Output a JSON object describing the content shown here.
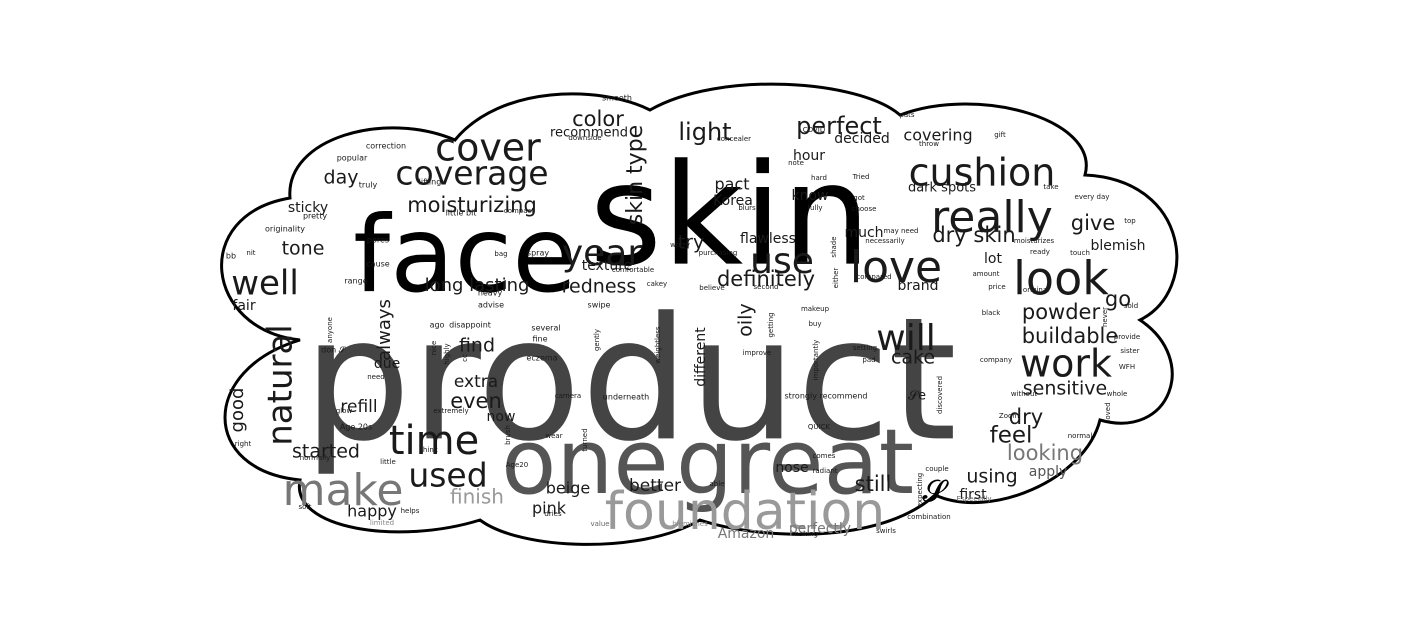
{
  "cloud_shape": "cloud",
  "colors": {
    "background": "#ffffff",
    "outline": "#000000",
    "shades": [
      "#000000",
      "#1a1a1a",
      "#333333",
      "#444444",
      "#555555",
      "#666666",
      "#777777",
      "#888888",
      "#999999",
      "#aaaaaa"
    ]
  },
  "words": [
    {
      "text": "skin",
      "weight": 1.0,
      "shade": 0
    },
    {
      "text": "product",
      "weight": 1.0,
      "shade": 3
    },
    {
      "text": "face",
      "weight": 0.9,
      "shade": 0
    },
    {
      "text": "one",
      "weight": 0.75,
      "shade": 4
    },
    {
      "text": "great",
      "weight": 0.75,
      "shade": 4
    },
    {
      "text": "foundation",
      "weight": 0.55,
      "shade": 8
    },
    {
      "text": "cover",
      "weight": 0.4,
      "shade": 1
    },
    {
      "text": "coverage",
      "weight": 0.35,
      "shade": 1
    },
    {
      "text": "cushion",
      "weight": 0.4,
      "shade": 1
    },
    {
      "text": "really",
      "weight": 0.45,
      "shade": 1
    },
    {
      "text": "look",
      "weight": 0.45,
      "shade": 1
    },
    {
      "text": "love",
      "weight": 0.45,
      "shade": 1
    },
    {
      "text": "year",
      "weight": 0.4,
      "shade": 1
    },
    {
      "text": "use",
      "weight": 0.4,
      "shade": 1
    },
    {
      "text": "will",
      "weight": 0.4,
      "shade": 1
    },
    {
      "text": "work",
      "weight": 0.42,
      "shade": 1
    },
    {
      "text": "time",
      "weight": 0.42,
      "shade": 1
    },
    {
      "text": "make",
      "weight": 0.45,
      "shade": 6
    },
    {
      "text": "used",
      "weight": 0.38,
      "shade": 1
    },
    {
      "text": "natural",
      "weight": 0.35,
      "shade": 1
    },
    {
      "text": "well",
      "weight": 0.38,
      "shade": 1
    },
    {
      "text": "moisturizing",
      "weight": 0.2,
      "shade": 1
    },
    {
      "text": "perfect",
      "weight": 0.22,
      "shade": 1
    },
    {
      "text": "light",
      "weight": 0.2,
      "shade": 1
    },
    {
      "text": "color",
      "weight": 0.2,
      "shade": 1
    },
    {
      "text": "skin type",
      "weight": 0.2,
      "shade": 1
    },
    {
      "text": "dry skin",
      "weight": 0.2,
      "shade": 1
    },
    {
      "text": "definitely",
      "weight": 0.2,
      "shade": 1
    },
    {
      "text": "long lasting",
      "weight": 0.18,
      "shade": 1
    },
    {
      "text": "redness",
      "weight": 0.18,
      "shade": 1
    },
    {
      "text": "powder",
      "weight": 0.2,
      "shade": 1
    },
    {
      "text": "buildable",
      "weight": 0.2,
      "shade": 1
    },
    {
      "text": "sensitive",
      "weight": 0.18,
      "shade": 1
    },
    {
      "text": "looking",
      "weight": 0.2,
      "shade": 6
    },
    {
      "text": "finish",
      "weight": 0.2,
      "shade": 8
    },
    {
      "text": "even",
      "weight": 0.2,
      "shade": 1
    },
    {
      "text": "find",
      "weight": 0.18,
      "shade": 1
    },
    {
      "text": "cake",
      "weight": 0.18,
      "shade": 1
    },
    {
      "text": "feel",
      "weight": 0.2,
      "shade": 1
    },
    {
      "text": "dry",
      "weight": 0.2,
      "shade": 1
    },
    {
      "text": "using",
      "weight": 0.18,
      "shade": 1
    },
    {
      "text": "still",
      "weight": 0.2,
      "shade": 1
    },
    {
      "text": "tone",
      "weight": 0.18,
      "shade": 1
    },
    {
      "text": "day",
      "weight": 0.18,
      "shade": 1
    },
    {
      "text": "go",
      "weight": 0.2,
      "shade": 1
    },
    {
      "text": "give",
      "weight": 0.18,
      "shade": 1
    },
    {
      "text": "try",
      "weight": 0.18,
      "shade": 1
    },
    {
      "text": "good",
      "weight": 0.16,
      "shade": 1
    },
    {
      "text": "always",
      "weight": 0.16,
      "shade": 1
    },
    {
      "text": "oily",
      "weight": 0.16,
      "shade": 1
    },
    {
      "text": "started",
      "weight": 0.16,
      "shade": 1
    },
    {
      "text": "extra",
      "weight": 0.15,
      "shade": 1
    },
    {
      "text": "refill",
      "weight": 0.15,
      "shade": 1
    },
    {
      "text": "beige",
      "weight": 0.15,
      "shade": 1
    },
    {
      "text": "pink",
      "weight": 0.15,
      "shade": 1
    },
    {
      "text": "better",
      "weight": 0.15,
      "shade": 1
    },
    {
      "text": "happy",
      "weight": 0.15,
      "shade": 1
    },
    {
      "text": "texture",
      "weight": 0.13,
      "shade": 1
    },
    {
      "text": "pact",
      "weight": 0.14,
      "shade": 1
    },
    {
      "text": "Korea",
      "weight": 0.13,
      "shade": 1
    },
    {
      "text": "flawless",
      "weight": 0.13,
      "shade": 1
    },
    {
      "text": "hour",
      "weight": 0.13,
      "shade": 1
    },
    {
      "text": "know",
      "weight": 0.13,
      "shade": 1
    },
    {
      "text": "decided",
      "weight": 0.13,
      "shade": 1
    },
    {
      "text": "covering",
      "weight": 0.13,
      "shade": 1
    },
    {
      "text": "recommend",
      "weight": 0.12,
      "shade": 1
    },
    {
      "text": "dark spots",
      "weight": 0.12,
      "shade": 1
    },
    {
      "text": "sticky",
      "weight": 0.12,
      "shade": 1
    },
    {
      "text": "much",
      "weight": 0.12,
      "shade": 1
    },
    {
      "text": "brand",
      "weight": 0.12,
      "shade": 1
    },
    {
      "text": "lot",
      "weight": 0.12,
      "shade": 1
    },
    {
      "text": "blemish",
      "weight": 0.12,
      "shade": 1
    },
    {
      "text": "fair",
      "weight": 0.12,
      "shade": 1
    },
    {
      "text": "due",
      "weight": 0.12,
      "shade": 1
    },
    {
      "text": "now",
      "weight": 0.12,
      "shade": 1
    },
    {
      "text": "different",
      "weight": 0.12,
      "shade": 1
    },
    {
      "text": "nose",
      "weight": 0.12,
      "shade": 1
    },
    {
      "text": "first",
      "weight": 0.12,
      "shade": 1
    },
    {
      "text": "apply",
      "weight": 0.12,
      "shade": 4
    },
    {
      "text": "Amazon",
      "weight": 0.12,
      "shade": 6
    },
    {
      "text": "perfectly",
      "weight": 0.12,
      "shade": 6
    },
    {
      "text": "smooth",
      "weight": 0.06,
      "shade": 1
    },
    {
      "text": "correction",
      "weight": 0.06,
      "shade": 1
    },
    {
      "text": "popular",
      "weight": 0.06,
      "shade": 1
    },
    {
      "text": "truly",
      "weight": 0.06,
      "shade": 1
    },
    {
      "text": "lifting",
      "weight": 0.06,
      "shade": 1
    },
    {
      "text": "little bit",
      "weight": 0.06,
      "shade": 1
    },
    {
      "text": "compact",
      "weight": 0.05,
      "shade": 1
    },
    {
      "text": "pretty",
      "weight": 0.06,
      "shade": 1
    },
    {
      "text": "originality",
      "weight": 0.06,
      "shade": 1
    },
    {
      "text": "pores",
      "weight": 0.06,
      "shade": 1
    },
    {
      "text": "spray",
      "weight": 0.06,
      "shade": 1
    },
    {
      "text": "bag",
      "weight": 0.05,
      "shade": 1
    },
    {
      "text": "bb",
      "weight": 0.06,
      "shade": 1
    },
    {
      "text": "nit",
      "weight": 0.05,
      "shade": 1
    },
    {
      "text": "cause",
      "weight": 0.06,
      "shade": 1
    },
    {
      "text": "range",
      "weight": 0.06,
      "shade": 1
    },
    {
      "text": "heavy",
      "weight": 0.06,
      "shade": 1
    },
    {
      "text": "advise",
      "weight": 0.06,
      "shade": 1
    },
    {
      "text": "comfortable",
      "weight": 0.05,
      "shade": 1
    },
    {
      "text": "cakey",
      "weight": 0.05,
      "shade": 1
    },
    {
      "text": "swipe",
      "weight": 0.06,
      "shade": 1
    },
    {
      "text": "ago",
      "weight": 0.06,
      "shade": 1
    },
    {
      "text": "disappoint",
      "weight": 0.06,
      "shade": 1
    },
    {
      "text": "several",
      "weight": 0.06,
      "shade": 1
    },
    {
      "text": "fine",
      "weight": 0.06,
      "shade": 1
    },
    {
      "text": "eczema",
      "weight": 0.06,
      "shade": 1
    },
    {
      "text": "camera",
      "weight": 0.05,
      "shade": 1
    },
    {
      "text": "underneath",
      "weight": 0.05,
      "shade": 1
    },
    {
      "text": "gently",
      "weight": 0.05,
      "shade": 1
    },
    {
      "text": "weightless",
      "weight": 0.05,
      "shade": 1
    },
    {
      "text": "worry",
      "weight": 0.05,
      "shade": 1
    },
    {
      "text": "purchasing",
      "weight": 0.05,
      "shade": 1
    },
    {
      "text": "believe",
      "weight": 0.05,
      "shade": 1
    },
    {
      "text": "second",
      "weight": 0.05,
      "shade": 1
    },
    {
      "text": "blurs",
      "weight": 0.05,
      "shade": 1
    },
    {
      "text": "concealer",
      "weight": 0.05,
      "shade": 1
    },
    {
      "text": "downside",
      "weight": 0.05,
      "shade": 1
    },
    {
      "text": "COVID",
      "weight": 0.05,
      "shade": 1
    },
    {
      "text": "note",
      "weight": 0.05,
      "shade": 1
    },
    {
      "text": "hard",
      "weight": 0.05,
      "shade": 1
    },
    {
      "text": "fully",
      "weight": 0.05,
      "shade": 1
    },
    {
      "text": "Tried",
      "weight": 0.05,
      "shade": 1
    },
    {
      "text": "got",
      "weight": 0.05,
      "shade": 1
    },
    {
      "text": "choose",
      "weight": 0.05,
      "shade": 1
    },
    {
      "text": "pats",
      "weight": 0.05,
      "shade": 1
    },
    {
      "text": "throw",
      "weight": 0.05,
      "shade": 1
    },
    {
      "text": "gift",
      "weight": 0.05,
      "shade": 1
    },
    {
      "text": "take",
      "weight": 0.05,
      "shade": 1
    },
    {
      "text": "every day",
      "weight": 0.05,
      "shade": 1
    },
    {
      "text": "top",
      "weight": 0.05,
      "shade": 1
    },
    {
      "text": "may need",
      "weight": 0.05,
      "shade": 1
    },
    {
      "text": "necessarily",
      "weight": 0.05,
      "shade": 1
    },
    {
      "text": "compared",
      "weight": 0.05,
      "shade": 1
    },
    {
      "text": "moisturizes",
      "weight": 0.05,
      "shade": 1
    },
    {
      "text": "ready",
      "weight": 0.05,
      "shade": 1
    },
    {
      "text": "touch",
      "weight": 0.05,
      "shade": 1
    },
    {
      "text": "amount",
      "weight": 0.05,
      "shade": 1
    },
    {
      "text": "price",
      "weight": 0.05,
      "shade": 1
    },
    {
      "text": "original",
      "weight": 0.05,
      "shade": 1
    },
    {
      "text": "sold",
      "weight": 0.05,
      "shade": 1
    },
    {
      "text": "black",
      "weight": 0.05,
      "shade": 1
    },
    {
      "text": "provide",
      "weight": 0.05,
      "shade": 1
    },
    {
      "text": "sister",
      "weight": 0.05,
      "shade": 1
    },
    {
      "text": "WFH",
      "weight": 0.05,
      "shade": 1
    },
    {
      "text": "whole",
      "weight": 0.05,
      "shade": 1
    },
    {
      "text": "without",
      "weight": 0.05,
      "shade": 1
    },
    {
      "text": "normal",
      "weight": 0.05,
      "shade": 1
    },
    {
      "text": "Zoom",
      "weight": 0.05,
      "shade": 1
    },
    {
      "text": "company",
      "weight": 0.05,
      "shade": 1
    },
    {
      "text": "shade",
      "weight": 0.05,
      "shade": 1
    },
    {
      "text": "either",
      "weight": 0.05,
      "shade": 1
    },
    {
      "text": "makeup",
      "weight": 0.05,
      "shade": 1
    },
    {
      "text": "buy",
      "weight": 0.05,
      "shade": 1
    },
    {
      "text": "setting",
      "weight": 0.05,
      "shade": 1
    },
    {
      "text": "pad",
      "weight": 0.05,
      "shade": 1
    },
    {
      "text": "getting",
      "weight": 0.05,
      "shade": 1
    },
    {
      "text": "improve",
      "weight": 0.05,
      "shade": 1
    },
    {
      "text": "importantly",
      "weight": 0.05,
      "shade": 1
    },
    {
      "text": "strongly recommend",
      "weight": 0.06,
      "shade": 1
    },
    {
      "text": "QUICK",
      "weight": 0.05,
      "shade": 1
    },
    {
      "text": "comes",
      "weight": 0.05,
      "shade": 1
    },
    {
      "text": "radiant",
      "weight": 0.05,
      "shade": 1
    },
    {
      "text": "couple",
      "weight": 0.05,
      "shade": 1
    },
    {
      "text": "expecting",
      "weight": 0.05,
      "shade": 1
    },
    {
      "text": "discovered",
      "weight": 0.05,
      "shade": 1
    },
    {
      "text": "Especially",
      "weight": 0.05,
      "shade": 5
    },
    {
      "text": "combination",
      "weight": 0.05,
      "shade": 1
    },
    {
      "text": "swirls",
      "weight": 0.05,
      "shade": 1
    },
    {
      "text": "making",
      "weight": 0.05,
      "shade": 1
    },
    {
      "text": "able",
      "weight": 0.05,
      "shade": 1
    },
    {
      "text": "blemishes",
      "weight": 0.05,
      "shade": 7
    },
    {
      "text": "value",
      "weight": 0.05,
      "shade": 5
    },
    {
      "text": "dries",
      "weight": 0.05,
      "shade": 1
    },
    {
      "text": "limited",
      "weight": 0.05,
      "shade": 7
    },
    {
      "text": "helps",
      "weight": 0.05,
      "shade": 1
    },
    {
      "text": "soft",
      "weight": 0.05,
      "shade": 1
    },
    {
      "text": "normally",
      "weight": 0.05,
      "shade": 1
    },
    {
      "text": "right",
      "weight": 0.05,
      "shade": 1
    },
    {
      "text": "glow",
      "weight": 0.05,
      "shade": 1
    },
    {
      "text": "Age 20s",
      "weight": 0.06,
      "shade": 1
    },
    {
      "text": "little",
      "weight": 0.05,
      "shade": 1
    },
    {
      "text": "think",
      "weight": 0.05,
      "shade": 1
    },
    {
      "text": "Age20",
      "weight": 0.05,
      "shade": 1
    },
    {
      "text": "brush",
      "weight": 0.05,
      "shade": 1
    },
    {
      "text": "wear",
      "weight": 0.05,
      "shade": 1
    },
    {
      "text": "turned",
      "weight": 0.05,
      "shade": 1
    },
    {
      "text": "extremely",
      "weight": 0.05,
      "shade": 1
    },
    {
      "text": "nice",
      "weight": 0.05,
      "shade": 1
    },
    {
      "text": "highly",
      "weight": 0.05,
      "shade": 1
    },
    {
      "text": "cc",
      "weight": 0.05,
      "shade": 1
    },
    {
      "text": "need",
      "weight": 0.05,
      "shade": 1
    },
    {
      "text": "anyone",
      "weight": 0.05,
      "shade": 1
    },
    {
      "text": "don 𝓢",
      "weight": 0.05,
      "shade": 1
    },
    {
      "text": "loved",
      "weight": 0.05,
      "shade": 1
    },
    {
      "text": "never",
      "weight": 0.05,
      "shade": 1
    },
    {
      "text": "𝓢e",
      "weight": 0.08,
      "shade": 1
    },
    {
      "text": "𝓢",
      "weight": 0.15,
      "shade": 0
    }
  ]
}
